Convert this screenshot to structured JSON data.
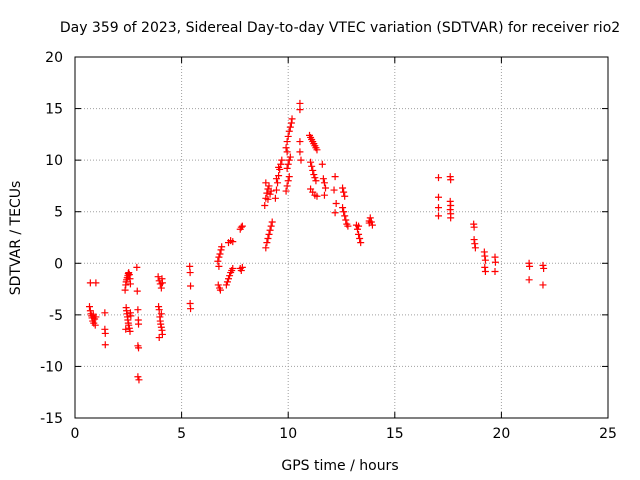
{
  "chart_data": {
    "type": "scatter",
    "title": "Day 359 of 2023, Sidereal Day-to-day VTEC variation (SDTVAR) for receiver rio2",
    "xlabel": "GPS time / hours",
    "ylabel": "SDTVAR / TECUs",
    "xlim": [
      0,
      25
    ],
    "ylim": [
      -15,
      20
    ],
    "xticks": [
      0,
      5,
      10,
      15,
      20,
      25
    ],
    "yticks": [
      -15,
      -10,
      -5,
      0,
      5,
      10,
      15,
      20
    ],
    "grid": true,
    "marker": "+",
    "color": "#ff0000",
    "series": [
      {
        "name": "SDTVAR",
        "points": [
          [
            0.72,
            -1.9
          ],
          [
            0.98,
            -1.9
          ],
          [
            0.68,
            -4.2
          ],
          [
            0.72,
            -4.6
          ],
          [
            0.75,
            -4.9
          ],
          [
            0.78,
            -5.1
          ],
          [
            0.8,
            -5.3
          ],
          [
            0.83,
            -5.6
          ],
          [
            0.86,
            -5.0
          ],
          [
            0.88,
            -5.8
          ],
          [
            0.92,
            -5.4
          ],
          [
            0.95,
            -6.0
          ],
          [
            0.98,
            -5.2
          ],
          [
            1.4,
            -4.8
          ],
          [
            1.4,
            -6.4
          ],
          [
            1.42,
            -6.8
          ],
          [
            1.42,
            -7.9
          ],
          [
            2.35,
            -2.6
          ],
          [
            2.38,
            -2.1
          ],
          [
            2.4,
            -1.8
          ],
          [
            2.42,
            -1.6
          ],
          [
            2.45,
            -1.4
          ],
          [
            2.48,
            -1.2
          ],
          [
            2.5,
            -1.0
          ],
          [
            2.52,
            -0.9
          ],
          [
            2.55,
            -1.1
          ],
          [
            2.58,
            -1.5
          ],
          [
            2.6,
            -2.0
          ],
          [
            2.4,
            -4.3
          ],
          [
            2.42,
            -4.6
          ],
          [
            2.44,
            -4.9
          ],
          [
            2.46,
            -5.2
          ],
          [
            2.48,
            -5.5
          ],
          [
            2.5,
            -5.8
          ],
          [
            2.52,
            -6.0
          ],
          [
            2.55,
            -6.3
          ],
          [
            2.58,
            -6.6
          ],
          [
            2.6,
            -4.8
          ],
          [
            2.62,
            -5.1
          ],
          [
            2.38,
            -6.4
          ],
          [
            2.9,
            -0.4
          ],
          [
            2.92,
            -2.7
          ],
          [
            2.95,
            -4.5
          ],
          [
            2.97,
            -5.5
          ],
          [
            2.98,
            -5.9
          ],
          [
            2.95,
            -8.0
          ],
          [
            2.98,
            -8.2
          ],
          [
            2.95,
            -11.0
          ],
          [
            3.0,
            -11.3
          ],
          [
            3.9,
            -1.3
          ],
          [
            3.95,
            -1.7
          ],
          [
            4.0,
            -2.0
          ],
          [
            4.05,
            -2.4
          ],
          [
            4.1,
            -1.9
          ],
          [
            4.08,
            -1.5
          ],
          [
            3.92,
            -4.2
          ],
          [
            3.95,
            -4.5
          ],
          [
            3.98,
            -5.2
          ],
          [
            4.0,
            -5.6
          ],
          [
            4.02,
            -5.9
          ],
          [
            4.05,
            -6.2
          ],
          [
            4.08,
            -6.5
          ],
          [
            4.1,
            -6.9
          ],
          [
            3.95,
            -7.2
          ],
          [
            4.05,
            -4.9
          ],
          [
            5.38,
            -0.3
          ],
          [
            5.4,
            -0.9
          ],
          [
            5.42,
            -2.2
          ],
          [
            5.4,
            -3.9
          ],
          [
            5.42,
            -4.4
          ],
          [
            6.7,
            0.2
          ],
          [
            6.75,
            0.6
          ],
          [
            6.8,
            0.9
          ],
          [
            6.85,
            1.3
          ],
          [
            6.88,
            1.6
          ],
          [
            6.75,
            -0.3
          ],
          [
            6.72,
            -2.1
          ],
          [
            6.78,
            -2.4
          ],
          [
            6.82,
            -2.6
          ],
          [
            7.1,
            -2.1
          ],
          [
            7.15,
            -1.8
          ],
          [
            7.2,
            -1.5
          ],
          [
            7.25,
            -1.2
          ],
          [
            7.3,
            -0.9
          ],
          [
            7.35,
            -0.7
          ],
          [
            7.4,
            -0.5
          ],
          [
            7.2,
            2.0
          ],
          [
            7.3,
            2.2
          ],
          [
            7.4,
            2.1
          ],
          [
            7.75,
            3.3
          ],
          [
            7.8,
            3.5
          ],
          [
            7.85,
            3.6
          ],
          [
            7.75,
            -0.5
          ],
          [
            7.8,
            -0.7
          ],
          [
            7.85,
            -0.4
          ],
          [
            8.95,
            1.5
          ],
          [
            9.0,
            2.0
          ],
          [
            9.05,
            2.4
          ],
          [
            9.1,
            2.8
          ],
          [
            9.15,
            3.2
          ],
          [
            9.2,
            3.6
          ],
          [
            9.25,
            4.0
          ],
          [
            8.9,
            5.6
          ],
          [
            8.95,
            6.3
          ],
          [
            9.0,
            6.8
          ],
          [
            9.05,
            7.2
          ],
          [
            9.1,
            7.5
          ],
          [
            8.95,
            7.8
          ],
          [
            9.05,
            6.2
          ],
          [
            9.15,
            6.7
          ],
          [
            9.2,
            7.0
          ],
          [
            9.4,
            6.3
          ],
          [
            9.45,
            7.1
          ],
          [
            9.5,
            7.8
          ],
          [
            9.55,
            8.5
          ],
          [
            9.6,
            9.1
          ],
          [
            9.65,
            9.6
          ],
          [
            9.7,
            10.0
          ],
          [
            9.45,
            8.2
          ],
          [
            9.55,
            9.3
          ],
          [
            9.9,
            7.0
          ],
          [
            9.95,
            7.5
          ],
          [
            10.0,
            8.0
          ],
          [
            10.05,
            8.4
          ],
          [
            9.95,
            9.2
          ],
          [
            10.0,
            9.6
          ],
          [
            10.05,
            10.0
          ],
          [
            10.1,
            10.3
          ],
          [
            9.95,
            10.8
          ],
          [
            9.9,
            11.2
          ],
          [
            9.95,
            11.8
          ],
          [
            10.0,
            12.3
          ],
          [
            10.05,
            12.8
          ],
          [
            10.1,
            13.2
          ],
          [
            10.15,
            13.6
          ],
          [
            10.18,
            14.0
          ],
          [
            10.55,
            15.5
          ],
          [
            10.55,
            14.9
          ],
          [
            10.55,
            11.8
          ],
          [
            10.55,
            10.8
          ],
          [
            10.6,
            10.0
          ],
          [
            11.0,
            12.4
          ],
          [
            11.05,
            12.2
          ],
          [
            11.1,
            12.0
          ],
          [
            11.15,
            11.8
          ],
          [
            11.2,
            11.6
          ],
          [
            11.25,
            11.4
          ],
          [
            11.3,
            11.2
          ],
          [
            11.35,
            11.0
          ],
          [
            11.05,
            9.8
          ],
          [
            11.1,
            9.4
          ],
          [
            11.15,
            9.0
          ],
          [
            11.2,
            8.6
          ],
          [
            11.25,
            8.3
          ],
          [
            11.3,
            8.0
          ],
          [
            11.05,
            7.2
          ],
          [
            11.15,
            6.9
          ],
          [
            11.25,
            6.6
          ],
          [
            11.35,
            6.5
          ],
          [
            11.6,
            9.6
          ],
          [
            11.65,
            8.2
          ],
          [
            11.7,
            7.8
          ],
          [
            11.75,
            7.3
          ],
          [
            11.7,
            6.6
          ],
          [
            12.2,
            8.4
          ],
          [
            12.15,
            7.1
          ],
          [
            12.25,
            5.8
          ],
          [
            12.2,
            4.9
          ],
          [
            12.55,
            7.3
          ],
          [
            12.6,
            6.9
          ],
          [
            12.65,
            6.5
          ],
          [
            12.55,
            5.4
          ],
          [
            12.6,
            5.0
          ],
          [
            12.65,
            4.6
          ],
          [
            12.7,
            4.2
          ],
          [
            12.75,
            3.8
          ],
          [
            12.8,
            3.6
          ],
          [
            13.2,
            3.7
          ],
          [
            13.25,
            3.3
          ],
          [
            13.3,
            2.8
          ],
          [
            13.35,
            2.4
          ],
          [
            13.4,
            2.0
          ],
          [
            13.3,
            3.6
          ],
          [
            13.8,
            4.1
          ],
          [
            13.85,
            4.4
          ],
          [
            13.9,
            4.0
          ],
          [
            13.95,
            3.7
          ],
          [
            13.8,
            3.9
          ],
          [
            17.05,
            8.3
          ],
          [
            17.05,
            6.4
          ],
          [
            17.05,
            5.4
          ],
          [
            17.05,
            4.6
          ],
          [
            17.6,
            8.4
          ],
          [
            17.62,
            8.1
          ],
          [
            17.6,
            6.0
          ],
          [
            17.62,
            5.6
          ],
          [
            17.6,
            5.2
          ],
          [
            17.62,
            4.8
          ],
          [
            17.62,
            4.4
          ],
          [
            18.7,
            3.8
          ],
          [
            18.72,
            3.5
          ],
          [
            18.72,
            2.3
          ],
          [
            18.75,
            1.9
          ],
          [
            18.78,
            1.5
          ],
          [
            19.2,
            1.1
          ],
          [
            19.22,
            0.7
          ],
          [
            19.25,
            0.3
          ],
          [
            19.22,
            -0.4
          ],
          [
            19.25,
            -0.8
          ],
          [
            19.7,
            0.6
          ],
          [
            19.72,
            0.1
          ],
          [
            19.7,
            -0.8
          ],
          [
            21.3,
            0.0
          ],
          [
            21.32,
            -0.3
          ],
          [
            21.3,
            -1.6
          ],
          [
            21.95,
            -0.2
          ],
          [
            21.98,
            -0.5
          ],
          [
            21.95,
            -2.1
          ]
        ]
      }
    ]
  }
}
